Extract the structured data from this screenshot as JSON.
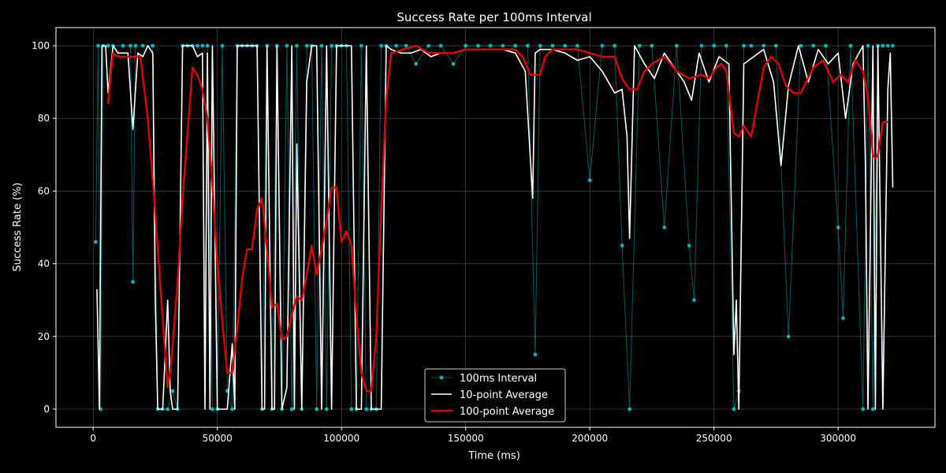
{
  "chart_data": {
    "type": "line",
    "title": "Success Rate per 100ms Interval",
    "xlabel": "Time (ms)",
    "ylabel": "Success Rate (%)",
    "xlim": [
      -15000,
      339000
    ],
    "ylim": [
      -5,
      105
    ],
    "xticks": [
      0,
      50000,
      100000,
      150000,
      200000,
      250000,
      300000
    ],
    "yticks": [
      0,
      20,
      40,
      60,
      80,
      100
    ],
    "grid": true,
    "legend_position": "bottom-center",
    "colors": {
      "background": "#000000",
      "interval": "#00e5e5",
      "avg10": "#ffffff",
      "avg100": "#e00000",
      "grid": "#555555"
    },
    "series": [
      {
        "name": "100ms Interval",
        "style": "line-markers",
        "x": [
          1000,
          2000,
          3000,
          4000,
          6000,
          8000,
          12000,
          15000,
          16000,
          17000,
          20000,
          24000,
          26000,
          28000,
          30000,
          32000,
          34000,
          36000,
          38000,
          40000,
          42000,
          44000,
          46000,
          48000,
          50000,
          52000,
          54000,
          56000,
          58000,
          60000,
          62000,
          64000,
          66000,
          68000,
          70000,
          72000,
          74000,
          76000,
          78000,
          80000,
          82000,
          84000,
          86000,
          88000,
          90000,
          92000,
          94000,
          96000,
          98000,
          100000,
          102000,
          104000,
          106000,
          108000,
          110000,
          112000,
          114000,
          116000,
          118000,
          122000,
          126000,
          130000,
          135000,
          140000,
          145000,
          150000,
          155000,
          160000,
          165000,
          170000,
          175000,
          178000,
          180000,
          185000,
          190000,
          195000,
          200000,
          205000,
          210000,
          213000,
          216000,
          220000,
          225000,
          230000,
          235000,
          240000,
          242000,
          245000,
          250000,
          255000,
          258000,
          260000,
          262000,
          265000,
          270000,
          275000,
          280000,
          285000,
          290000,
          295000,
          300000,
          302000,
          305000,
          310000,
          312000,
          314000,
          316000,
          318000,
          320000,
          322000
        ],
        "y": [
          46,
          100,
          0,
          100,
          100,
          100,
          100,
          100,
          35,
          100,
          100,
          100,
          0,
          0,
          0,
          5,
          0,
          100,
          100,
          100,
          100,
          100,
          100,
          0,
          0,
          100,
          5,
          0,
          100,
          100,
          100,
          100,
          100,
          0,
          100,
          0,
          100,
          0,
          100,
          0,
          100,
          0,
          100,
          100,
          0,
          100,
          0,
          100,
          100,
          100,
          100,
          0,
          0,
          100,
          0,
          0,
          0,
          100,
          100,
          100,
          100,
          95,
          100,
          100,
          95,
          100,
          100,
          100,
          100,
          100,
          100,
          15,
          100,
          100,
          100,
          100,
          63,
          100,
          100,
          45,
          0,
          100,
          100,
          50,
          100,
          45,
          30,
          100,
          100,
          100,
          0,
          5,
          100,
          100,
          100,
          100,
          20,
          100,
          100,
          100,
          50,
          25,
          100,
          0,
          100,
          0,
          100,
          100,
          100,
          100
        ]
      },
      {
        "name": "10-point Average",
        "style": "line",
        "x": [
          1500,
          2500,
          3500,
          5000,
          6000,
          8000,
          10000,
          14000,
          16000,
          18000,
          20000,
          22000,
          24000,
          25000,
          26000,
          28000,
          30000,
          31000,
          32000,
          34000,
          36000,
          38000,
          40000,
          42000,
          44000,
          45000,
          46000,
          47000,
          48000,
          50000,
          52000,
          54000,
          56000,
          57000,
          58000,
          60000,
          62000,
          64000,
          66000,
          68000,
          69000,
          70000,
          72000,
          73000,
          74000,
          76000,
          78000,
          80000,
          81000,
          82000,
          84000,
          86000,
          88000,
          90000,
          92000,
          94000,
          96000,
          98000,
          100000,
          102000,
          104000,
          106000,
          108000,
          110000,
          112000,
          114000,
          116000,
          118000,
          120000,
          124000,
          128000,
          132000,
          136000,
          140000,
          145000,
          150000,
          155000,
          160000,
          165000,
          170000,
          174000,
          177000,
          178000,
          180000,
          185000,
          190000,
          195000,
          200000,
          205000,
          210000,
          213000,
          215000,
          216000,
          218000,
          222000,
          226000,
          230000,
          234000,
          238000,
          241000,
          244000,
          248000,
          252000,
          256000,
          258000,
          259000,
          260000,
          262000,
          266000,
          270000,
          274000,
          277000,
          280000,
          284000,
          288000,
          292000,
          296000,
          300000,
          303000,
          306000,
          310000,
          311000,
          312000,
          314000,
          315000,
          316000,
          318000,
          320000,
          321000,
          322000
        ],
        "y": [
          33,
          0,
          100,
          100,
          87,
          100,
          98,
          98,
          77,
          98,
          97,
          100,
          98,
          30,
          0,
          0,
          30,
          5,
          0,
          0,
          100,
          100,
          100,
          97,
          98,
          0,
          98,
          0,
          100,
          0,
          0,
          0,
          18,
          0,
          100,
          100,
          100,
          100,
          100,
          0,
          0,
          100,
          0,
          0,
          100,
          0,
          6,
          100,
          0,
          73,
          0,
          90,
          100,
          100,
          0,
          100,
          0,
          100,
          100,
          100,
          100,
          0,
          0,
          100,
          0,
          0,
          0,
          100,
          99,
          98,
          98,
          99,
          97,
          98,
          98,
          99,
          99,
          99,
          99,
          98,
          93,
          58,
          98,
          99,
          99,
          98,
          96,
          97,
          93,
          87,
          88,
          75,
          47,
          100,
          95,
          91,
          98,
          94,
          90,
          85,
          98,
          90,
          97,
          95,
          15,
          30,
          0,
          95,
          97,
          99,
          90,
          67,
          89,
          100,
          90,
          99,
          95,
          98,
          80,
          95,
          100,
          67,
          0,
          100,
          0,
          100,
          0,
          88,
          98,
          61
        ]
      },
      {
        "name": "100-point Average",
        "style": "line",
        "x": [
          6000,
          7000,
          8000,
          10000,
          13000,
          16000,
          19000,
          22000,
          25000,
          27000,
          29000,
          30000,
          31000,
          32000,
          34000,
          36000,
          38000,
          40000,
          42000,
          44000,
          46000,
          48000,
          50000,
          52000,
          54000,
          56000,
          58000,
          60000,
          62000,
          64000,
          66000,
          68000,
          70000,
          72000,
          74000,
          76000,
          78000,
          80000,
          82000,
          84000,
          86000,
          88000,
          90000,
          92000,
          94000,
          96000,
          98000,
          100000,
          102000,
          104000,
          106000,
          108000,
          110000,
          112000,
          114000,
          116000,
          118000,
          120000,
          125000,
          130000,
          135000,
          140000,
          145000,
          150000,
          155000,
          160000,
          165000,
          170000,
          173000,
          176000,
          178000,
          180000,
          182000,
          185000,
          190000,
          195000,
          200000,
          205000,
          210000,
          213000,
          216000,
          219000,
          222000,
          225000,
          230000,
          235000,
          240000,
          245000,
          248000,
          251000,
          253000,
          255000,
          258000,
          260000,
          262000,
          265000,
          270000,
          273000,
          276000,
          279000,
          282000,
          285000,
          290000,
          294000,
          298000,
          301000,
          304000,
          307000,
          310000,
          312000,
          314000,
          315000,
          316000,
          318000,
          320000
        ],
        "y": [
          84,
          92,
          98,
          97,
          97,
          97,
          97,
          80,
          54,
          34,
          15,
          6,
          10,
          18,
          35,
          58,
          76,
          94,
          92,
          88,
          80,
          62,
          40,
          24,
          10,
          10,
          22,
          36,
          44,
          44,
          55,
          58,
          44,
          28,
          29,
          19,
          20,
          26,
          31,
          30,
          37,
          45,
          37,
          44,
          52,
          61,
          61,
          46,
          49,
          45,
          26,
          10,
          5,
          5,
          20,
          55,
          85,
          98,
          99,
          100,
          98,
          98,
          98,
          99,
          99,
          99,
          99,
          99,
          97,
          92,
          92,
          92,
          97,
          99,
          99,
          99,
          98,
          97,
          97,
          91,
          88,
          88,
          93,
          95,
          97,
          93,
          91,
          92,
          91,
          94,
          95,
          93,
          76,
          75,
          78,
          75,
          94,
          97,
          95,
          89,
          87,
          87,
          94,
          96,
          90,
          92,
          90,
          96,
          93,
          86,
          70,
          69,
          70,
          79,
          79
        ]
      }
    ]
  }
}
